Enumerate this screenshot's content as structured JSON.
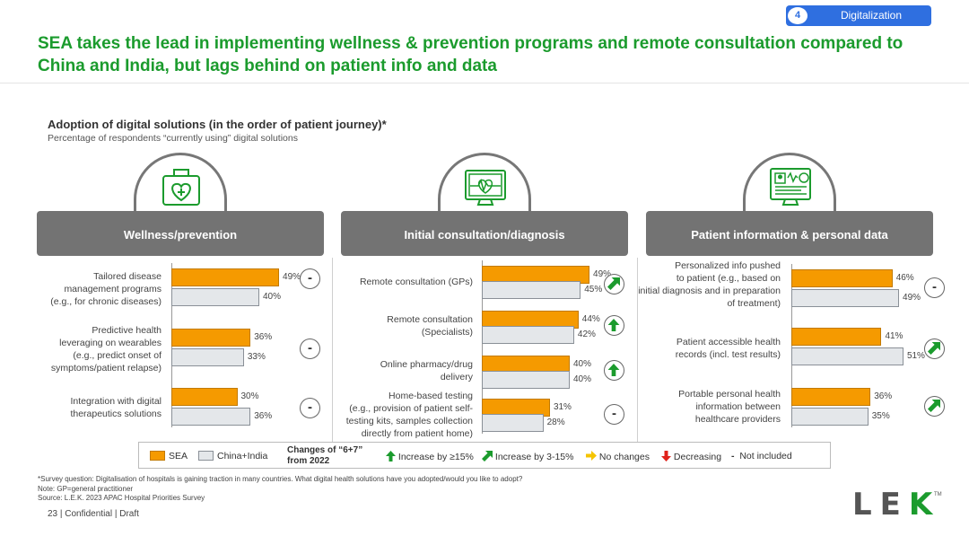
{
  "section_tag": {
    "number": "4",
    "label": "Digitalization"
  },
  "title": "SEA takes the lead in implementing wellness & prevention programs and remote consultation compared to China and India, but lags behind on patient info and data",
  "subtitle": "Adoption of digital solutions (in the order of patient journey)*",
  "subtitle2": "Percentage of respondents “currently using” digital solutions",
  "colors": {
    "sea": "#f59a00",
    "china_india": "#e4e7ea",
    "green": "#1b9b2d",
    "panel": "#737373",
    "accent": "#2f6fe0"
  },
  "chart_data": [
    {
      "type": "bar",
      "title": "Wellness/prevention",
      "icon": "medical-kit-icon",
      "categories": [
        "Tailored disease\nmanagement programs\n(e.g., for chronic diseases)",
        "Predictive health\nleveraging on wearables\n(e.g., predict onset of\nsymptoms/patient relapse)",
        "Integration with digital\ntherapeutics solutions"
      ],
      "series": [
        {
          "name": "SEA",
          "values": [
            49,
            36,
            30
          ]
        },
        {
          "name": "China+India",
          "values": [
            40,
            33,
            36
          ]
        }
      ],
      "changes": [
        "not-included",
        "not-included",
        "not-included"
      ]
    },
    {
      "type": "bar",
      "title": "Initial consultation/diagnosis",
      "icon": "heart-monitor-icon",
      "categories": [
        "Remote consultation (GPs)",
        "Remote consultation\n(Specialists)",
        "Online pharmacy/drug\ndelivery",
        "Home-based testing\n(e.g., provision of patient self-\ntesting kits, samples collection\ndirectly from patient home)"
      ],
      "series": [
        {
          "name": "SEA",
          "values": [
            49,
            44,
            40,
            31
          ]
        },
        {
          "name": "China+India",
          "values": [
            45,
            42,
            40,
            28
          ]
        }
      ],
      "changes": [
        "increase-3-15",
        "increase-15",
        "increase-15",
        "not-included"
      ]
    },
    {
      "type": "bar",
      "title": "Patient information & personal data",
      "icon": "patient-record-icon",
      "categories": [
        "Personalized info pushed\nto patient (e.g., based on\ninitial diagnosis and in preparation\nof treatment)",
        "Patient accessible health\nrecords (incl. test results)",
        "Portable personal health\ninformation between\nhealthcare providers"
      ],
      "series": [
        {
          "name": "SEA",
          "values": [
            46,
            41,
            36
          ]
        },
        {
          "name": "China+India",
          "values": [
            49,
            51,
            35
          ]
        }
      ],
      "changes": [
        "not-included",
        "increase-3-15",
        "increase-3-15"
      ]
    }
  ],
  "legend": {
    "sea": "SEA",
    "china_india": "China+India",
    "changes_title": "Changes of “6+7”\nfrom 2022",
    "inc15": "Increase by ≥15%",
    "inc3": "Increase by 3-15%",
    "nochange": "No changes",
    "decreasing": "Decreasing",
    "not_included_symbol": "-",
    "not_included": "Not included"
  },
  "footnotes": [
    "*Survey question: Digitalisation of hospitals is gaining traction in many countries. What digital health solutions have you adopted/would you like to adopt?",
    "Note: GP=general practitioner",
    "Source: L.E.K. 2023 APAC Hospital Priorities Survey"
  ],
  "page": "23 | Confidential | Draft",
  "logo": "LEK",
  "logo_tm": "TM"
}
